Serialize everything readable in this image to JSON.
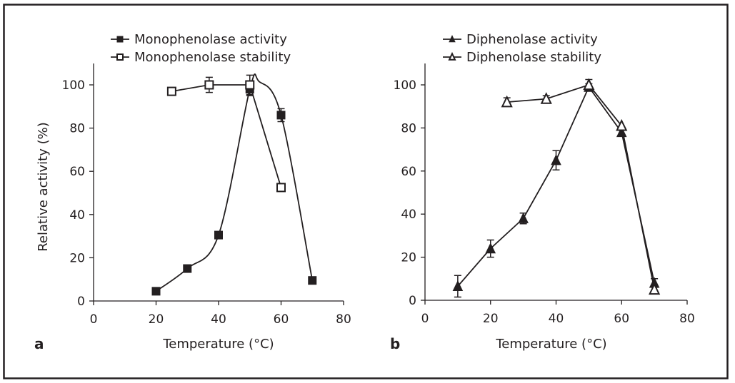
{
  "chart_data": [
    {
      "type": "line",
      "panel_label": "a",
      "title": "",
      "xlabel": "Temperature (°C)",
      "ylabel": "Relative activity (%)",
      "xlim": [
        0,
        80
      ],
      "ylim": [
        0,
        110
      ],
      "xticks": [
        0,
        20,
        40,
        60,
        80
      ],
      "yticks": [
        0,
        20,
        40,
        60,
        80,
        100
      ],
      "xtick_labels": [
        "0",
        "20",
        "40",
        "60",
        "80"
      ],
      "ytick_labels": [
        "0",
        "20",
        "40",
        "60",
        "80",
        "100"
      ],
      "grid": false,
      "legend_position": "top-center",
      "series": [
        {
          "name": "Monophenolase activity",
          "marker": "filled-square",
          "line": "smooth",
          "x": [
            20,
            30,
            40,
            50,
            60,
            70
          ],
          "y": [
            4.5,
            15,
            30.5,
            98,
            86,
            9.5
          ],
          "error": [
            1,
            1,
            1,
            3,
            3,
            1
          ]
        },
        {
          "name": "Monophenolase stability",
          "marker": "open-square",
          "line": "straight",
          "x": [
            25,
            37,
            50,
            60
          ],
          "y": [
            97,
            100,
            100,
            52.5
          ],
          "error": [
            1,
            3.5,
            4.5,
            1
          ]
        }
      ]
    },
    {
      "type": "line",
      "panel_label": "b",
      "title": "",
      "xlabel": "Temperature (°C)",
      "ylabel": "",
      "xlim": [
        0,
        80
      ],
      "ylim": [
        0,
        110
      ],
      "xticks": [
        0,
        20,
        40,
        60,
        80
      ],
      "yticks": [
        0,
        20,
        40,
        60,
        80,
        100
      ],
      "xtick_labels": [
        "0",
        "20",
        "40",
        "60",
        "80"
      ],
      "ytick_labels": [
        "0",
        "20",
        "40",
        "60",
        "80",
        "100"
      ],
      "grid": false,
      "legend_position": "top-center",
      "series": [
        {
          "name": "Diphenolase activity",
          "marker": "filled-triangle",
          "line": "straight",
          "x": [
            10,
            20,
            30,
            40,
            50,
            60,
            70
          ],
          "y": [
            6.5,
            24,
            38,
            65,
            99,
            78,
            8
          ],
          "error": [
            5,
            4,
            2.5,
            4.5,
            1.5,
            1,
            2
          ]
        },
        {
          "name": "Diphenolase stability",
          "marker": "open-triangle",
          "line": "straight",
          "x": [
            25,
            37,
            50,
            60,
            70
          ],
          "y": [
            92,
            93.5,
            100,
            81,
            5
          ],
          "error": [
            2,
            1.5,
            2.5,
            1,
            2
          ]
        }
      ]
    }
  ]
}
